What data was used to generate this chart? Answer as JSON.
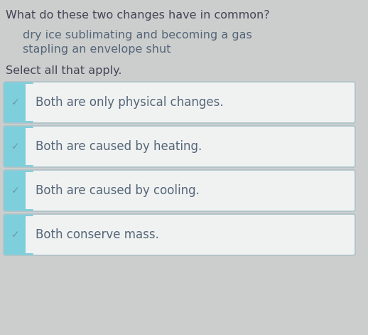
{
  "background_color": "#cccece",
  "title_line1": "What do these two changes have in common?",
  "subtitle_line1": "dry ice sublimating and becoming a gas",
  "subtitle_line2": "stapling an envelope shut",
  "instruction": "Select all that apply.",
  "options": [
    "Both are only physical changes.",
    "Both are caused by heating.",
    "Both are caused by cooling.",
    "Both conserve mass."
  ],
  "option_box_color": "#f0f2f2",
  "option_box_border_color": "#b0c4c8",
  "checkbox_color": "#7ecfdc",
  "checkmark_color": "#6699aa",
  "text_color": "#556677",
  "title_color": "#444455",
  "subtitle_color": "#556677",
  "instruction_color": "#444455",
  "title_fontsize": 11.5,
  "subtitle_fontsize": 11.5,
  "instruction_fontsize": 11.5,
  "option_fontsize": 12,
  "checkmark_fontsize": 10
}
